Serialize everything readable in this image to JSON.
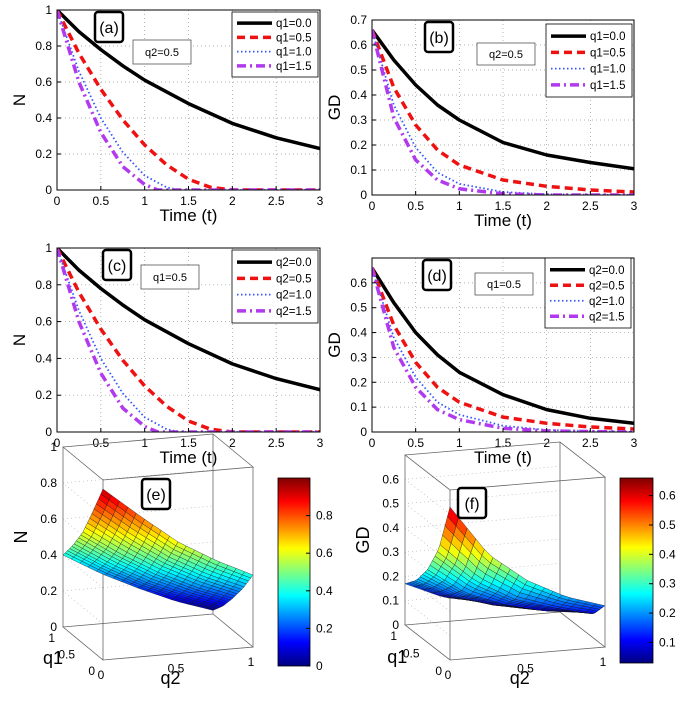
{
  "figure": {
    "note": ""
  },
  "colorbar_colors": [
    "#00007f",
    "#0000ff",
    "#007fff",
    "#00ffff",
    "#7fff7f",
    "#ffff00",
    "#ff7f00",
    "#ff0000",
    "#7f0000"
  ],
  "chart_data": [
    {
      "type": "line",
      "panel": "(a)",
      "box_label": "q2=0.5",
      "xlabel": "Time (t)",
      "ylabel": "N",
      "xlim": [
        0,
        3
      ],
      "ylim": [
        0,
        1
      ],
      "xticks": [
        0,
        0.5,
        1,
        1.5,
        2,
        2.5,
        3
      ],
      "yticks": [
        0,
        0.2,
        0.4,
        0.6,
        0.8,
        1
      ],
      "grid": true,
      "legend": "top-right",
      "series": [
        {
          "name": "q1=0.0",
          "style": "solid",
          "color": "#000000",
          "x": [
            0,
            0.25,
            0.5,
            0.75,
            1,
            1.5,
            2,
            2.5,
            3
          ],
          "y": [
            1,
            0.88,
            0.78,
            0.69,
            0.61,
            0.48,
            0.37,
            0.29,
            0.23
          ]
        },
        {
          "name": "q1=0.5",
          "style": "dashed",
          "color": "#ee1111",
          "x": [
            0,
            0.25,
            0.5,
            0.75,
            1,
            1.25,
            1.5,
            1.75,
            2,
            3
          ],
          "y": [
            1,
            0.76,
            0.56,
            0.39,
            0.25,
            0.14,
            0.06,
            0.015,
            0,
            0
          ]
        },
        {
          "name": "q1=1.0",
          "style": "dotted",
          "color": "#3355ff",
          "x": [
            0,
            0.25,
            0.5,
            0.75,
            1,
            1.25,
            1.4,
            3
          ],
          "y": [
            1,
            0.66,
            0.4,
            0.21,
            0.08,
            0.015,
            0,
            0
          ]
        },
        {
          "name": "q1=1.5",
          "style": "dashdot",
          "color": "#b23aee",
          "x": [
            0,
            0.25,
            0.5,
            0.75,
            1,
            1.15,
            3
          ],
          "y": [
            1,
            0.6,
            0.32,
            0.13,
            0.03,
            0,
            0
          ]
        }
      ]
    },
    {
      "type": "line",
      "panel": "(b)",
      "box_label": "q2=0.5",
      "xlabel": "Time (t)",
      "ylabel": "GD",
      "xlim": [
        0,
        3
      ],
      "ylim": [
        0,
        0.7
      ],
      "xticks": [
        0,
        0.5,
        1,
        1.5,
        2,
        2.5,
        3
      ],
      "yticks": [
        0,
        0.1,
        0.2,
        0.3,
        0.4,
        0.5,
        0.6,
        0.7
      ],
      "grid": true,
      "legend": "top-right",
      "series": [
        {
          "name": "q1=0.0",
          "style": "solid",
          "color": "#000000",
          "x": [
            0,
            0.25,
            0.5,
            0.75,
            1,
            1.5,
            2,
            2.5,
            3
          ],
          "y": [
            0.66,
            0.54,
            0.44,
            0.36,
            0.3,
            0.21,
            0.16,
            0.13,
            0.105
          ]
        },
        {
          "name": "q1=0.5",
          "style": "dashed",
          "color": "#ee1111",
          "x": [
            0,
            0.25,
            0.5,
            0.75,
            1,
            1.5,
            2,
            2.5,
            3
          ],
          "y": [
            0.66,
            0.43,
            0.28,
            0.18,
            0.12,
            0.06,
            0.035,
            0.02,
            0.012
          ]
        },
        {
          "name": "q1=1.0",
          "style": "dotted",
          "color": "#3355ff",
          "x": [
            0,
            0.25,
            0.5,
            0.75,
            1,
            1.5,
            2,
            3
          ],
          "y": [
            0.66,
            0.36,
            0.19,
            0.09,
            0.045,
            0.012,
            0.003,
            0
          ]
        },
        {
          "name": "q1=1.5",
          "style": "dashdot",
          "color": "#b23aee",
          "x": [
            0,
            0.25,
            0.5,
            0.75,
            1,
            1.5,
            2,
            3
          ],
          "y": [
            0.66,
            0.31,
            0.14,
            0.06,
            0.025,
            0.005,
            0,
            0
          ]
        }
      ]
    },
    {
      "type": "line",
      "panel": "(c)",
      "box_label": "q1=0.5",
      "xlabel": "Time (t)",
      "ylabel": "N",
      "xlim": [
        0,
        3
      ],
      "ylim": [
        0,
        1
      ],
      "xticks": [
        0,
        0.5,
        1,
        1.5,
        2,
        2.5,
        3
      ],
      "yticks": [
        0,
        0.2,
        0.4,
        0.6,
        0.8,
        1
      ],
      "grid": true,
      "legend": "top-right",
      "series": [
        {
          "name": "q2=0.0",
          "style": "solid",
          "color": "#000000",
          "x": [
            0,
            0.25,
            0.5,
            0.75,
            1,
            1.5,
            2,
            2.5,
            3
          ],
          "y": [
            1,
            0.88,
            0.78,
            0.69,
            0.61,
            0.48,
            0.37,
            0.29,
            0.23
          ]
        },
        {
          "name": "q2=0.5",
          "style": "dashed",
          "color": "#ee1111",
          "x": [
            0,
            0.25,
            0.5,
            0.75,
            1,
            1.25,
            1.5,
            1.75,
            2,
            3
          ],
          "y": [
            1,
            0.76,
            0.56,
            0.39,
            0.25,
            0.14,
            0.06,
            0.015,
            0,
            0
          ]
        },
        {
          "name": "q2=1.0",
          "style": "dotted",
          "color": "#3355ff",
          "x": [
            0,
            0.25,
            0.5,
            0.75,
            1,
            1.25,
            1.4,
            3
          ],
          "y": [
            1,
            0.66,
            0.4,
            0.21,
            0.08,
            0.015,
            0,
            0
          ]
        },
        {
          "name": "q2=1.5",
          "style": "dashdot",
          "color": "#b23aee",
          "x": [
            0,
            0.25,
            0.5,
            0.75,
            1,
            1.15,
            3
          ],
          "y": [
            1,
            0.6,
            0.32,
            0.13,
            0.03,
            0,
            0
          ]
        }
      ]
    },
    {
      "type": "line",
      "panel": "(d)",
      "box_label": "q1=0.5",
      "xlabel": "Time (t)",
      "ylabel": "GD",
      "xlim": [
        0,
        3
      ],
      "ylim": [
        0,
        0.7
      ],
      "xticks": [
        0,
        0.5,
        1,
        1.5,
        2,
        2.5,
        3
      ],
      "yticks": [
        0,
        0.1,
        0.2,
        0.3,
        0.4,
        0.5,
        0.6
      ],
      "grid": true,
      "legend": "top-right",
      "series": [
        {
          "name": "q2=0.0",
          "style": "solid",
          "color": "#000000",
          "x": [
            0,
            0.25,
            0.5,
            0.75,
            1,
            1.5,
            2,
            2.5,
            3
          ],
          "y": [
            0.66,
            0.52,
            0.4,
            0.31,
            0.24,
            0.15,
            0.09,
            0.055,
            0.035
          ]
        },
        {
          "name": "q2=0.5",
          "style": "dashed",
          "color": "#ee1111",
          "x": [
            0,
            0.25,
            0.5,
            0.75,
            1,
            1.5,
            2,
            2.5,
            3
          ],
          "y": [
            0.66,
            0.43,
            0.28,
            0.18,
            0.12,
            0.06,
            0.035,
            0.02,
            0.012
          ]
        },
        {
          "name": "q2=1.0",
          "style": "dotted",
          "color": "#3355ff",
          "x": [
            0,
            0.25,
            0.5,
            0.75,
            1,
            1.5,
            2,
            3
          ],
          "y": [
            0.66,
            0.38,
            0.22,
            0.12,
            0.07,
            0.025,
            0.008,
            0
          ]
        },
        {
          "name": "q2=1.5",
          "style": "dashdot",
          "color": "#b23aee",
          "x": [
            0,
            0.25,
            0.5,
            0.75,
            1,
            1.5,
            2,
            3
          ],
          "y": [
            0.66,
            0.34,
            0.18,
            0.09,
            0.05,
            0.015,
            0.004,
            0
          ]
        }
      ]
    },
    {
      "type": "surface",
      "panel": "(e)",
      "xlabel": "q2",
      "ylabel": "q1",
      "zlabel": "N",
      "xlim": [
        0,
        1
      ],
      "ylim": [
        0,
        1
      ],
      "zlim": [
        0,
        1
      ],
      "xticks": [
        0,
        0.5,
        1
      ],
      "yticks": [
        0,
        0.5,
        1
      ],
      "zticks": [
        0,
        0.2,
        0.4,
        0.6,
        0.8,
        1
      ],
      "colorbar_ticks": [
        0,
        0.2,
        0.4,
        0.6,
        0.8
      ],
      "colorbar_range": [
        0,
        1
      ],
      "grid_x": [
        0,
        0.25,
        0.5,
        0.75,
        1
      ],
      "grid_y": [
        0,
        0.25,
        0.5,
        0.75,
        1
      ],
      "z": [
        [
          0.95,
          0.78,
          0.62,
          0.5,
          0.4
        ],
        [
          0.78,
          0.62,
          0.48,
          0.37,
          0.28
        ],
        [
          0.62,
          0.48,
          0.36,
          0.26,
          0.18
        ],
        [
          0.5,
          0.37,
          0.26,
          0.17,
          0.09
        ],
        [
          0.4,
          0.28,
          0.18,
          0.09,
          0.02
        ]
      ]
    },
    {
      "type": "surface",
      "panel": "(f)",
      "xlabel": "q2",
      "ylabel": "q1",
      "zlabel": "GD",
      "xlim": [
        0,
        1
      ],
      "ylim": [
        0,
        1
      ],
      "zlim": [
        0,
        0.7
      ],
      "xticks": [
        0,
        0.5,
        1
      ],
      "yticks": [
        0,
        0.5,
        1
      ],
      "zticks": [
        0,
        0.1,
        0.2,
        0.3,
        0.4,
        0.5,
        0.6
      ],
      "colorbar_ticks": [
        0.1,
        0.2,
        0.3,
        0.4,
        0.5,
        0.6
      ],
      "colorbar_range": [
        0.03,
        0.66
      ],
      "grid_x": [
        0,
        0.25,
        0.5,
        0.75,
        1
      ],
      "grid_y": [
        0,
        0.25,
        0.5,
        0.75,
        1
      ],
      "z": [
        [
          0.63,
          0.42,
          0.3,
          0.22,
          0.17
        ],
        [
          0.42,
          0.28,
          0.19,
          0.14,
          0.1
        ],
        [
          0.3,
          0.19,
          0.13,
          0.09,
          0.07
        ],
        [
          0.22,
          0.14,
          0.09,
          0.06,
          0.045
        ],
        [
          0.17,
          0.1,
          0.07,
          0.045,
          0.03
        ]
      ]
    }
  ]
}
